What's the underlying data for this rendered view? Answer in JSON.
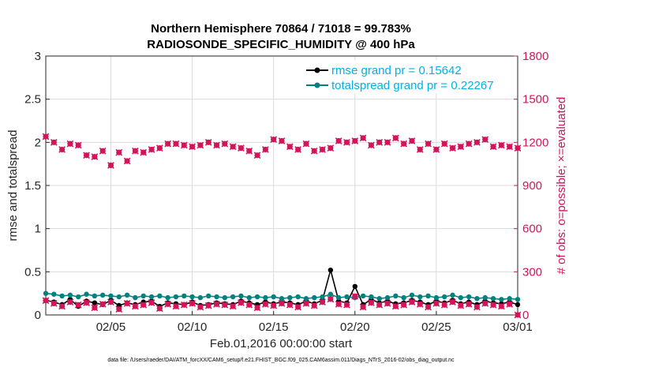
{
  "chart_data": {
    "type": "line",
    "title": "Northern Hemisphere 70864 / 71018 = 99.783%",
    "subtitle": "RADIOSONDE_SPECIFIC_HUMIDITY @ 400 hPa",
    "xlabel": "Feb.01,2016 00:00:00 start",
    "ylabel_left": "rmse and totalspread",
    "ylabel_right": "# of obs: o=possible; ×=evaluated",
    "xlim": [
      1,
      30
    ],
    "ylim_left": [
      0,
      3
    ],
    "ylim_right": [
      0,
      1800
    ],
    "x_ticks": [
      {
        "value": 5,
        "label": "02/05"
      },
      {
        "value": 10,
        "label": "02/10"
      },
      {
        "value": 15,
        "label": "02/15"
      },
      {
        "value": 20,
        "label": "02/20"
      },
      {
        "value": 25,
        "label": "02/25"
      },
      {
        "value": 30,
        "label": "03/01"
      }
    ],
    "y_ticks_left": [
      "0",
      "0.5",
      "1",
      "1.5",
      "2",
      "2.5",
      "3"
    ],
    "y_ticks_right": [
      "0",
      "300",
      "600",
      "900",
      "1200",
      "1500",
      "1800"
    ],
    "grid": true,
    "legend_position": "top-right",
    "colors": {
      "rmse": "#000000",
      "spread": "#00807f",
      "obs": "#d4145a",
      "right_axis": "#d4145a"
    },
    "x": [
      1.0,
      1.5,
      2.0,
      2.5,
      3.0,
      3.5,
      4.0,
      4.5,
      5.0,
      5.5,
      6.0,
      6.5,
      7.0,
      7.5,
      8.0,
      8.5,
      9.0,
      9.5,
      10.0,
      10.5,
      11.0,
      11.5,
      12.0,
      12.5,
      13.0,
      13.5,
      14.0,
      14.5,
      15.0,
      15.5,
      16.0,
      16.5,
      17.0,
      17.5,
      18.0,
      18.5,
      19.0,
      19.5,
      20.0,
      20.5,
      21.0,
      21.5,
      22.0,
      22.5,
      23.0,
      23.5,
      24.0,
      24.5,
      25.0,
      25.5,
      26.0,
      26.5,
      27.0,
      27.5,
      28.0,
      28.5,
      29.0,
      29.5,
      30.0
    ],
    "series": [
      {
        "name": "rmse grand pr = 0.15642",
        "axis": "left",
        "marker": "circle",
        "values": [
          0.17,
          0.15,
          0.12,
          0.18,
          0.1,
          0.16,
          0.14,
          0.12,
          0.17,
          0.11,
          0.14,
          0.12,
          0.15,
          0.16,
          0.1,
          0.14,
          0.13,
          0.12,
          0.15,
          0.11,
          0.12,
          0.14,
          0.13,
          0.12,
          0.16,
          0.14,
          0.12,
          0.15,
          0.13,
          0.15,
          0.14,
          0.12,
          0.16,
          0.13,
          0.17,
          0.52,
          0.16,
          0.14,
          0.33,
          0.12,
          0.18,
          0.14,
          0.16,
          0.13,
          0.14,
          0.17,
          0.15,
          0.12,
          0.16,
          0.14,
          0.17,
          0.13,
          0.15,
          0.12,
          0.16,
          0.14,
          0.13,
          0.15,
          0.12
        ]
      },
      {
        "name": "totalspread grand pr = 0.22267",
        "axis": "left",
        "marker": "circle",
        "values": [
          0.25,
          0.24,
          0.22,
          0.23,
          0.21,
          0.24,
          0.22,
          0.23,
          0.22,
          0.21,
          0.23,
          0.2,
          0.22,
          0.21,
          0.22,
          0.2,
          0.21,
          0.22,
          0.21,
          0.2,
          0.22,
          0.21,
          0.2,
          0.21,
          0.22,
          0.2,
          0.21,
          0.2,
          0.21,
          0.19,
          0.2,
          0.21,
          0.19,
          0.2,
          0.21,
          0.24,
          0.2,
          0.21,
          0.2,
          0.22,
          0.21,
          0.19,
          0.2,
          0.22,
          0.2,
          0.23,
          0.21,
          0.22,
          0.2,
          0.21,
          0.23,
          0.2,
          0.21,
          0.19,
          0.2,
          0.19,
          0.18,
          0.19,
          0.18
        ]
      },
      {
        "name": "possible",
        "axis": "right",
        "marker": "circle",
        "values": [
          1240,
          1200,
          1150,
          1190,
          1180,
          1110,
          1100,
          1140,
          1040,
          1130,
          1070,
          1140,
          1130,
          1150,
          1160,
          1190,
          1190,
          1180,
          1170,
          1180,
          1200,
          1180,
          1190,
          1170,
          1160,
          1140,
          1110,
          1150,
          1220,
          1210,
          1170,
          1150,
          1190,
          1140,
          1150,
          1160,
          1210,
          1200,
          1210,
          1230,
          1180,
          1200,
          1200,
          1230,
          1190,
          1210,
          1150,
          1190,
          1150,
          1190,
          1160,
          1170,
          1190,
          1200,
          1220,
          1170,
          1180,
          1170,
          1160
        ]
      },
      {
        "name": "evaluated",
        "axis": "right",
        "marker": "x",
        "values": [
          1240,
          1200,
          1150,
          1190,
          1180,
          1110,
          1100,
          1140,
          1040,
          1130,
          1070,
          1140,
          1130,
          1150,
          1160,
          1190,
          1190,
          1180,
          1170,
          1180,
          1200,
          1180,
          1190,
          1170,
          1160,
          1140,
          1110,
          1150,
          1220,
          1210,
          1170,
          1150,
          1190,
          1140,
          1150,
          1160,
          1210,
          1200,
          1210,
          1230,
          1180,
          1200,
          1200,
          1230,
          1190,
          1210,
          1150,
          1190,
          1150,
          1190,
          1160,
          1170,
          1190,
          1200,
          1220,
          1170,
          1180,
          1170,
          1160
        ]
      },
      {
        "name": "possible",
        "axis": "right",
        "marker": "circle",
        "values": [
          100,
          80,
          60,
          90,
          70,
          85,
          50,
          75,
          90,
          40,
          80,
          60,
          70,
          85,
          45,
          75,
          60,
          70,
          80,
          55,
          65,
          75,
          70,
          60,
          85,
          70,
          50,
          75,
          65,
          80,
          70,
          55,
          80,
          65,
          90,
          110,
          75,
          70,
          130,
          55,
          85,
          70,
          80,
          60,
          70,
          90,
          75,
          55,
          80,
          70,
          90,
          65,
          75,
          55,
          80,
          70,
          60,
          75,
          0
        ]
      },
      {
        "name": "evaluated",
        "axis": "right",
        "marker": "x",
        "values": [
          100,
          80,
          60,
          90,
          70,
          85,
          50,
          75,
          90,
          40,
          80,
          60,
          70,
          85,
          45,
          75,
          60,
          70,
          80,
          55,
          65,
          75,
          70,
          60,
          85,
          70,
          50,
          75,
          65,
          80,
          70,
          55,
          80,
          65,
          90,
          110,
          75,
          70,
          130,
          55,
          85,
          70,
          80,
          60,
          70,
          90,
          75,
          55,
          80,
          70,
          90,
          65,
          75,
          55,
          80,
          70,
          60,
          75,
          0
        ]
      }
    ]
  },
  "footnote": "data file: /Users/raeder/DAI/ATM_forcXX/CAM6_setup/f.e21.FHIST_BGC.f09_025.CAM6assim.011/Diags_NTrS_2016-02/obs_diag_output.nc"
}
